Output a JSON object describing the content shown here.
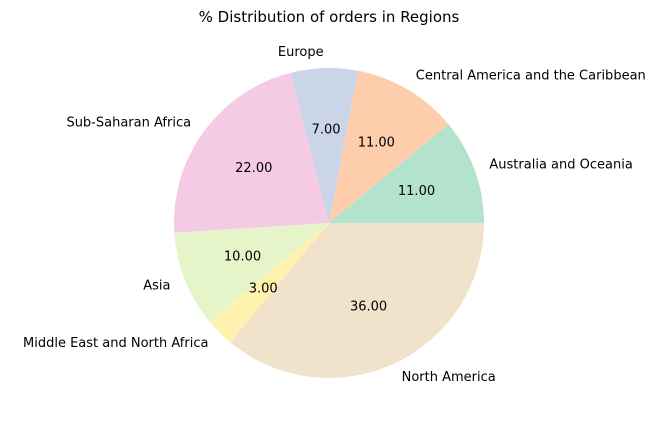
{
  "chart_data": {
    "type": "pie",
    "title": "% Distribution of orders in Regions",
    "categories": [
      "Australia and Oceania",
      "Central America and the Caribbean",
      "Europe",
      "Sub-Saharan Africa",
      "Asia",
      "Middle East and North Africa",
      "North America"
    ],
    "values": [
      11.0,
      11.0,
      7.0,
      22.0,
      10.0,
      3.0,
      36.0
    ],
    "value_labels": [
      "11.00",
      "11.00",
      "7.00",
      "22.00",
      "10.00",
      "3.00",
      "36.00"
    ],
    "colors": [
      "#b3e2cd",
      "#fdcdac",
      "#cbd5e8",
      "#f4cae4",
      "#e6f5c9",
      "#fff2ae",
      "#f1e2cc"
    ],
    "legend": "none",
    "start_angle_deg": 0,
    "direction": "counterclockwise"
  }
}
